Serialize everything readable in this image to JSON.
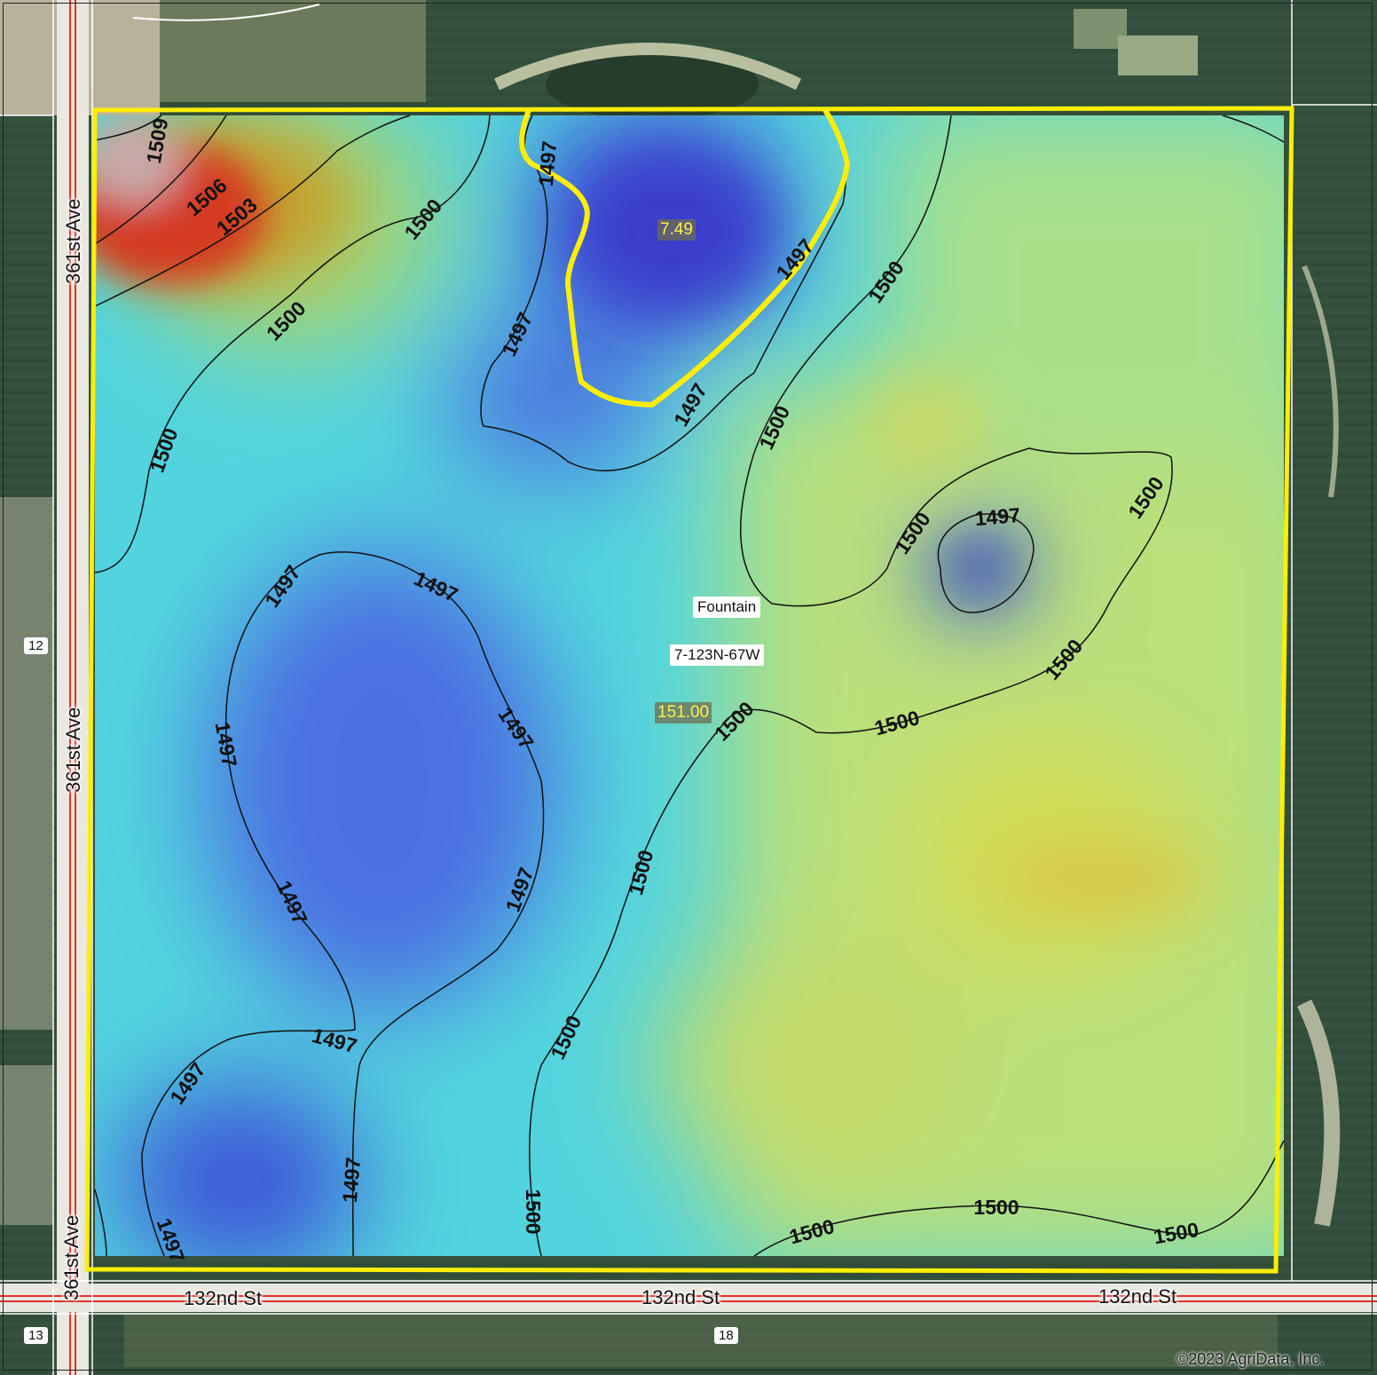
{
  "map": {
    "place_name": "Fountain",
    "section_label": "7-123N-67W",
    "roads": {
      "west": "361st Ave",
      "south": "132nd St"
    },
    "section_numbers": {
      "west": "12",
      "southwest": "13",
      "south": "18"
    },
    "annotations": {
      "zone_value": "7.49",
      "field_value": "151.00"
    },
    "contour_values": {
      "c1509": "1509",
      "c1506": "1506",
      "c1503": "1503",
      "c1500": "1500",
      "c1497": "1497"
    },
    "colors": {
      "boundary": "#ffee00",
      "low_elevation": "#3a4fd8",
      "mid_elevation": "#4fe6e6",
      "high_elevation": "#d9e062",
      "peak_elevation": "#cc2a1c",
      "road_line": "#e0302a",
      "contour_line": "#111111"
    },
    "copyright": "©2023 AgriData, Inc."
  }
}
